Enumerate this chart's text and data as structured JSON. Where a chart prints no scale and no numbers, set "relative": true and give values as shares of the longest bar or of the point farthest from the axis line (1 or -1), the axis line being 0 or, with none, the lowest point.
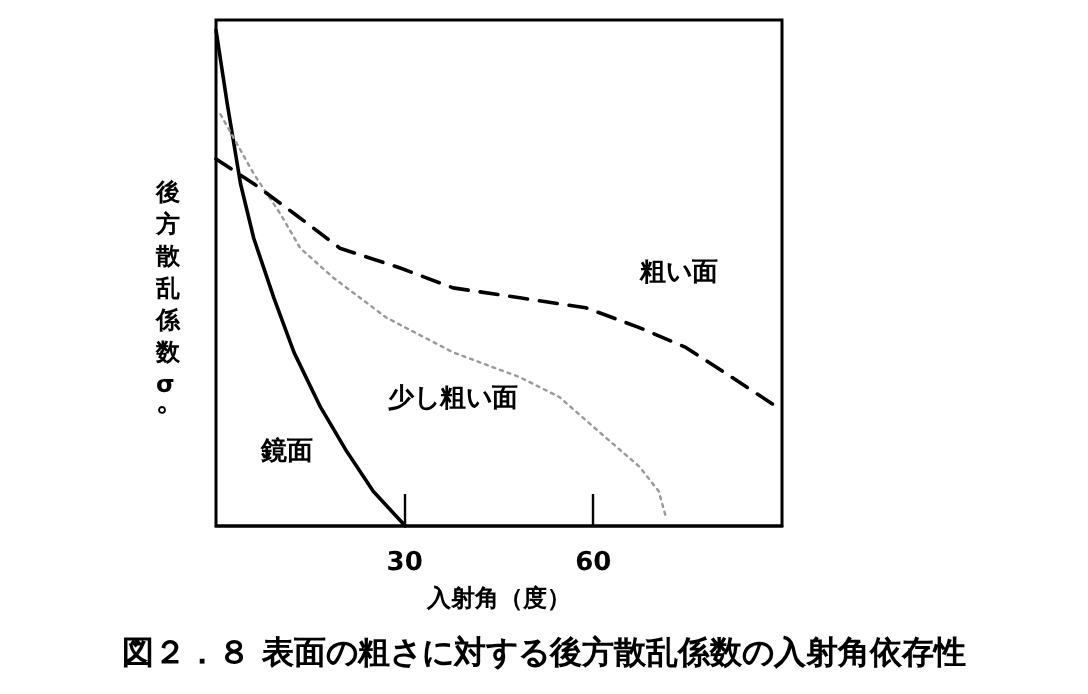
{
  "chart_data": {
    "type": "line",
    "relative": true,
    "title": "図２．８ 表面の粗さに対する後方散乱係数の入射角依存性",
    "xlabel": "入射角（度）",
    "ylabel": "後方散乱係数σ°",
    "xlim": [
      0,
      90
    ],
    "xticks": [
      30,
      60
    ],
    "grid": false,
    "legend": false,
    "marker": "none",
    "series": [
      {
        "name": "鏡面",
        "color": "#000000",
        "line_style": "solid",
        "x": [
          0,
          1.8,
          3.9,
          6,
          9.2,
          12.4,
          16.6,
          20.8,
          25,
          30.1
        ],
        "values": [
          1,
          0.85,
          0.69,
          0.58,
          0.46,
          0.35,
          0.24,
          0.15,
          0.07,
          0
        ]
      },
      {
        "name": "少し粗い面",
        "color": "#999999",
        "line_style": "dotted",
        "x": [
          0.7,
          6,
          10.2,
          13.4,
          18.7,
          27.1,
          37.7,
          48.3,
          54.6,
          60.9,
          67.3,
          70.4,
          71.5
        ],
        "values": [
          0.83,
          0.71,
          0.63,
          0.56,
          0.5,
          0.42,
          0.35,
          0.3,
          0.26,
          0.19,
          0.12,
          0.07,
          0.02
        ]
      },
      {
        "name": "粗い面",
        "color": "#000000",
        "line_style": "dashed",
        "x": [
          0,
          6,
          12.4,
          19.7,
          29.3,
          37.7,
          48.3,
          58.8,
          67.3,
          74.7,
          82,
          89.8
        ],
        "values": [
          0.74,
          0.69,
          0.63,
          0.56,
          0.52,
          0.48,
          0.46,
          0.44,
          0.4,
          0.36,
          0.3,
          0.235
        ]
      }
    ]
  }
}
